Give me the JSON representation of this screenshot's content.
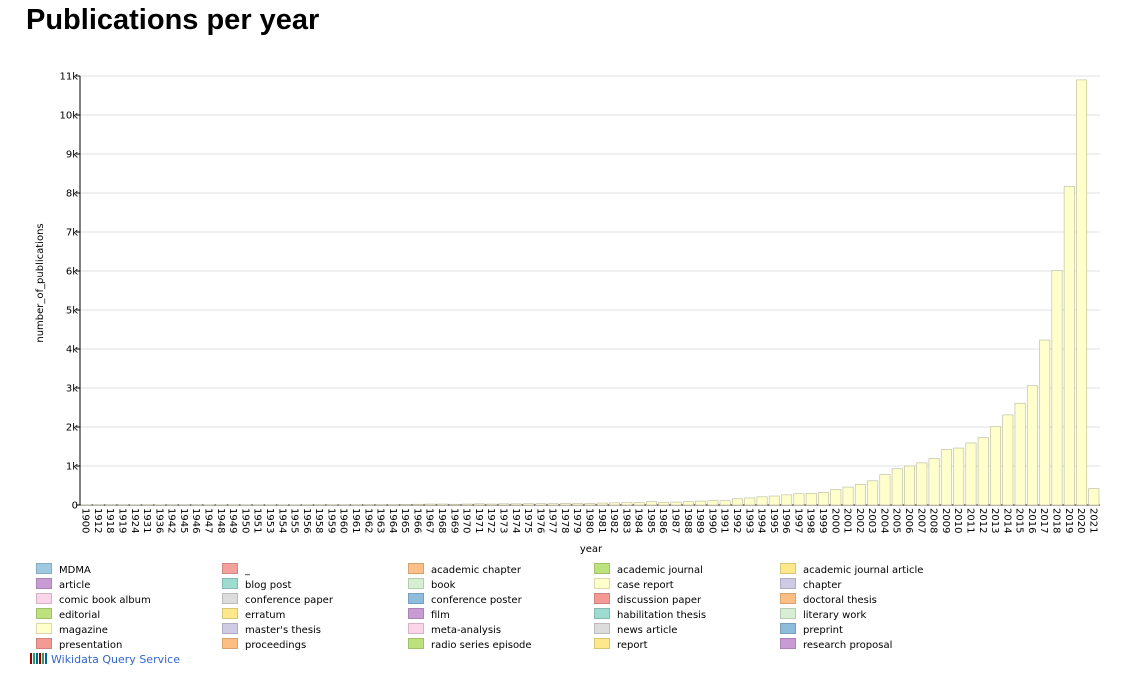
{
  "title": "Publications per year",
  "chart_data": {
    "type": "bar",
    "xlabel": "year",
    "ylabel": "number_of_publications",
    "categories": [
      "1900",
      "1912",
      "1918",
      "1919",
      "1924",
      "1931",
      "1936",
      "1942",
      "1945",
      "1946",
      "1947",
      "1948",
      "1949",
      "1950",
      "1951",
      "1953",
      "1954",
      "1955",
      "1956",
      "1958",
      "1959",
      "1960",
      "1961",
      "1962",
      "1963",
      "1964",
      "1965",
      "1966",
      "1967",
      "1968",
      "1969",
      "1970",
      "1971",
      "1972",
      "1973",
      "1974",
      "1975",
      "1976",
      "1977",
      "1978",
      "1979",
      "1980",
      "1981",
      "1982",
      "1983",
      "1984",
      "1985",
      "1986",
      "1987",
      "1988",
      "1989",
      "1990",
      "1991",
      "1992",
      "1993",
      "1994",
      "1995",
      "1996",
      "1997",
      "1998",
      "1999",
      "2000",
      "2001",
      "2002",
      "2003",
      "2004",
      "2005",
      "2006",
      "2007",
      "2008",
      "2009",
      "2010",
      "2011",
      "2012",
      "2013",
      "2014",
      "2015",
      "2016",
      "2017",
      "2018",
      "2019",
      "2020",
      "2021"
    ],
    "values": [
      5,
      3,
      3,
      3,
      5,
      8,
      5,
      3,
      3,
      3,
      5,
      5,
      5,
      5,
      5,
      5,
      5,
      5,
      5,
      8,
      8,
      8,
      8,
      10,
      10,
      10,
      15,
      20,
      25,
      25,
      20,
      25,
      30,
      25,
      30,
      30,
      35,
      35,
      35,
      40,
      40,
      40,
      50,
      55,
      60,
      65,
      90,
      70,
      75,
      85,
      100,
      110,
      110,
      160,
      180,
      210,
      230,
      260,
      290,
      300,
      320,
      400,
      460,
      530,
      620,
      780,
      930,
      1000,
      1080,
      1190,
      1420,
      1460,
      1590,
      1730,
      2010,
      2310,
      2610,
      3060,
      4230,
      6010,
      8170,
      10900,
      420
    ],
    "color": "#ffffcc",
    "ylim": [
      0,
      11000
    ],
    "yticks": [
      0,
      {
        "value": 1000,
        "label": "1k"
      },
      {
        "value": 2000,
        "label": "2k"
      },
      {
        "value": 3000,
        "label": "3k"
      },
      {
        "value": 4000,
        "label": "4k"
      },
      {
        "value": 5000,
        "label": "5k"
      },
      {
        "value": 6000,
        "label": "6k"
      },
      {
        "value": 7000,
        "label": "7k"
      },
      {
        "value": 8000,
        "label": "8k"
      },
      {
        "value": 9000,
        "label": "9k"
      },
      {
        "value": 10000,
        "label": "10k"
      },
      {
        "value": 11000,
        "label": "11k"
      }
    ],
    "grid": true,
    "legend": [
      {
        "name": "MDMA",
        "color": "#9ecae1"
      },
      {
        "name": "_",
        "color": "#f4a09b"
      },
      {
        "name": "academic chapter",
        "color": "#fdbf87"
      },
      {
        "name": "academic journal",
        "color": "#bde27d"
      },
      {
        "name": "academic journal article",
        "color": "#fde98b"
      },
      {
        "name": "article",
        "color": "#c99bd4"
      },
      {
        "name": "blog post",
        "color": "#9edbd0"
      },
      {
        "name": "book",
        "color": "#d6efd3"
      },
      {
        "name": "case report",
        "color": "#ffffcc"
      },
      {
        "name": "chapter",
        "color": "#cfcbe4"
      },
      {
        "name": "comic book album",
        "color": "#fad4e8"
      },
      {
        "name": "conference paper",
        "color": "#dcdcdc"
      },
      {
        "name": "conference poster",
        "color": "#8ebcdc"
      },
      {
        "name": "discussion paper",
        "color": "#f49a94"
      },
      {
        "name": "doctoral thesis",
        "color": "#fdbe84"
      },
      {
        "name": "editorial",
        "color": "#bde27d"
      },
      {
        "name": "erratum",
        "color": "#fde98b"
      },
      {
        "name": "film",
        "color": "#c99bd4"
      },
      {
        "name": "habilitation thesis",
        "color": "#9edbd0"
      },
      {
        "name": "literary work",
        "color": "#d6efd3"
      },
      {
        "name": "magazine",
        "color": "#ffffcc"
      },
      {
        "name": "master's thesis",
        "color": "#cfcbe4"
      },
      {
        "name": "meta-analysis",
        "color": "#fad4e8"
      },
      {
        "name": "news article",
        "color": "#dcdcdc"
      },
      {
        "name": "preprint",
        "color": "#8ebcdc"
      },
      {
        "name": "presentation",
        "color": "#f49a94"
      },
      {
        "name": "proceedings",
        "color": "#fdbe84"
      },
      {
        "name": "radio series episode",
        "color": "#bde27d"
      },
      {
        "name": "report",
        "color": "#fde98b"
      },
      {
        "name": "research proposal",
        "color": "#c99bd4"
      }
    ]
  },
  "footer": "Wikidata Query Service"
}
